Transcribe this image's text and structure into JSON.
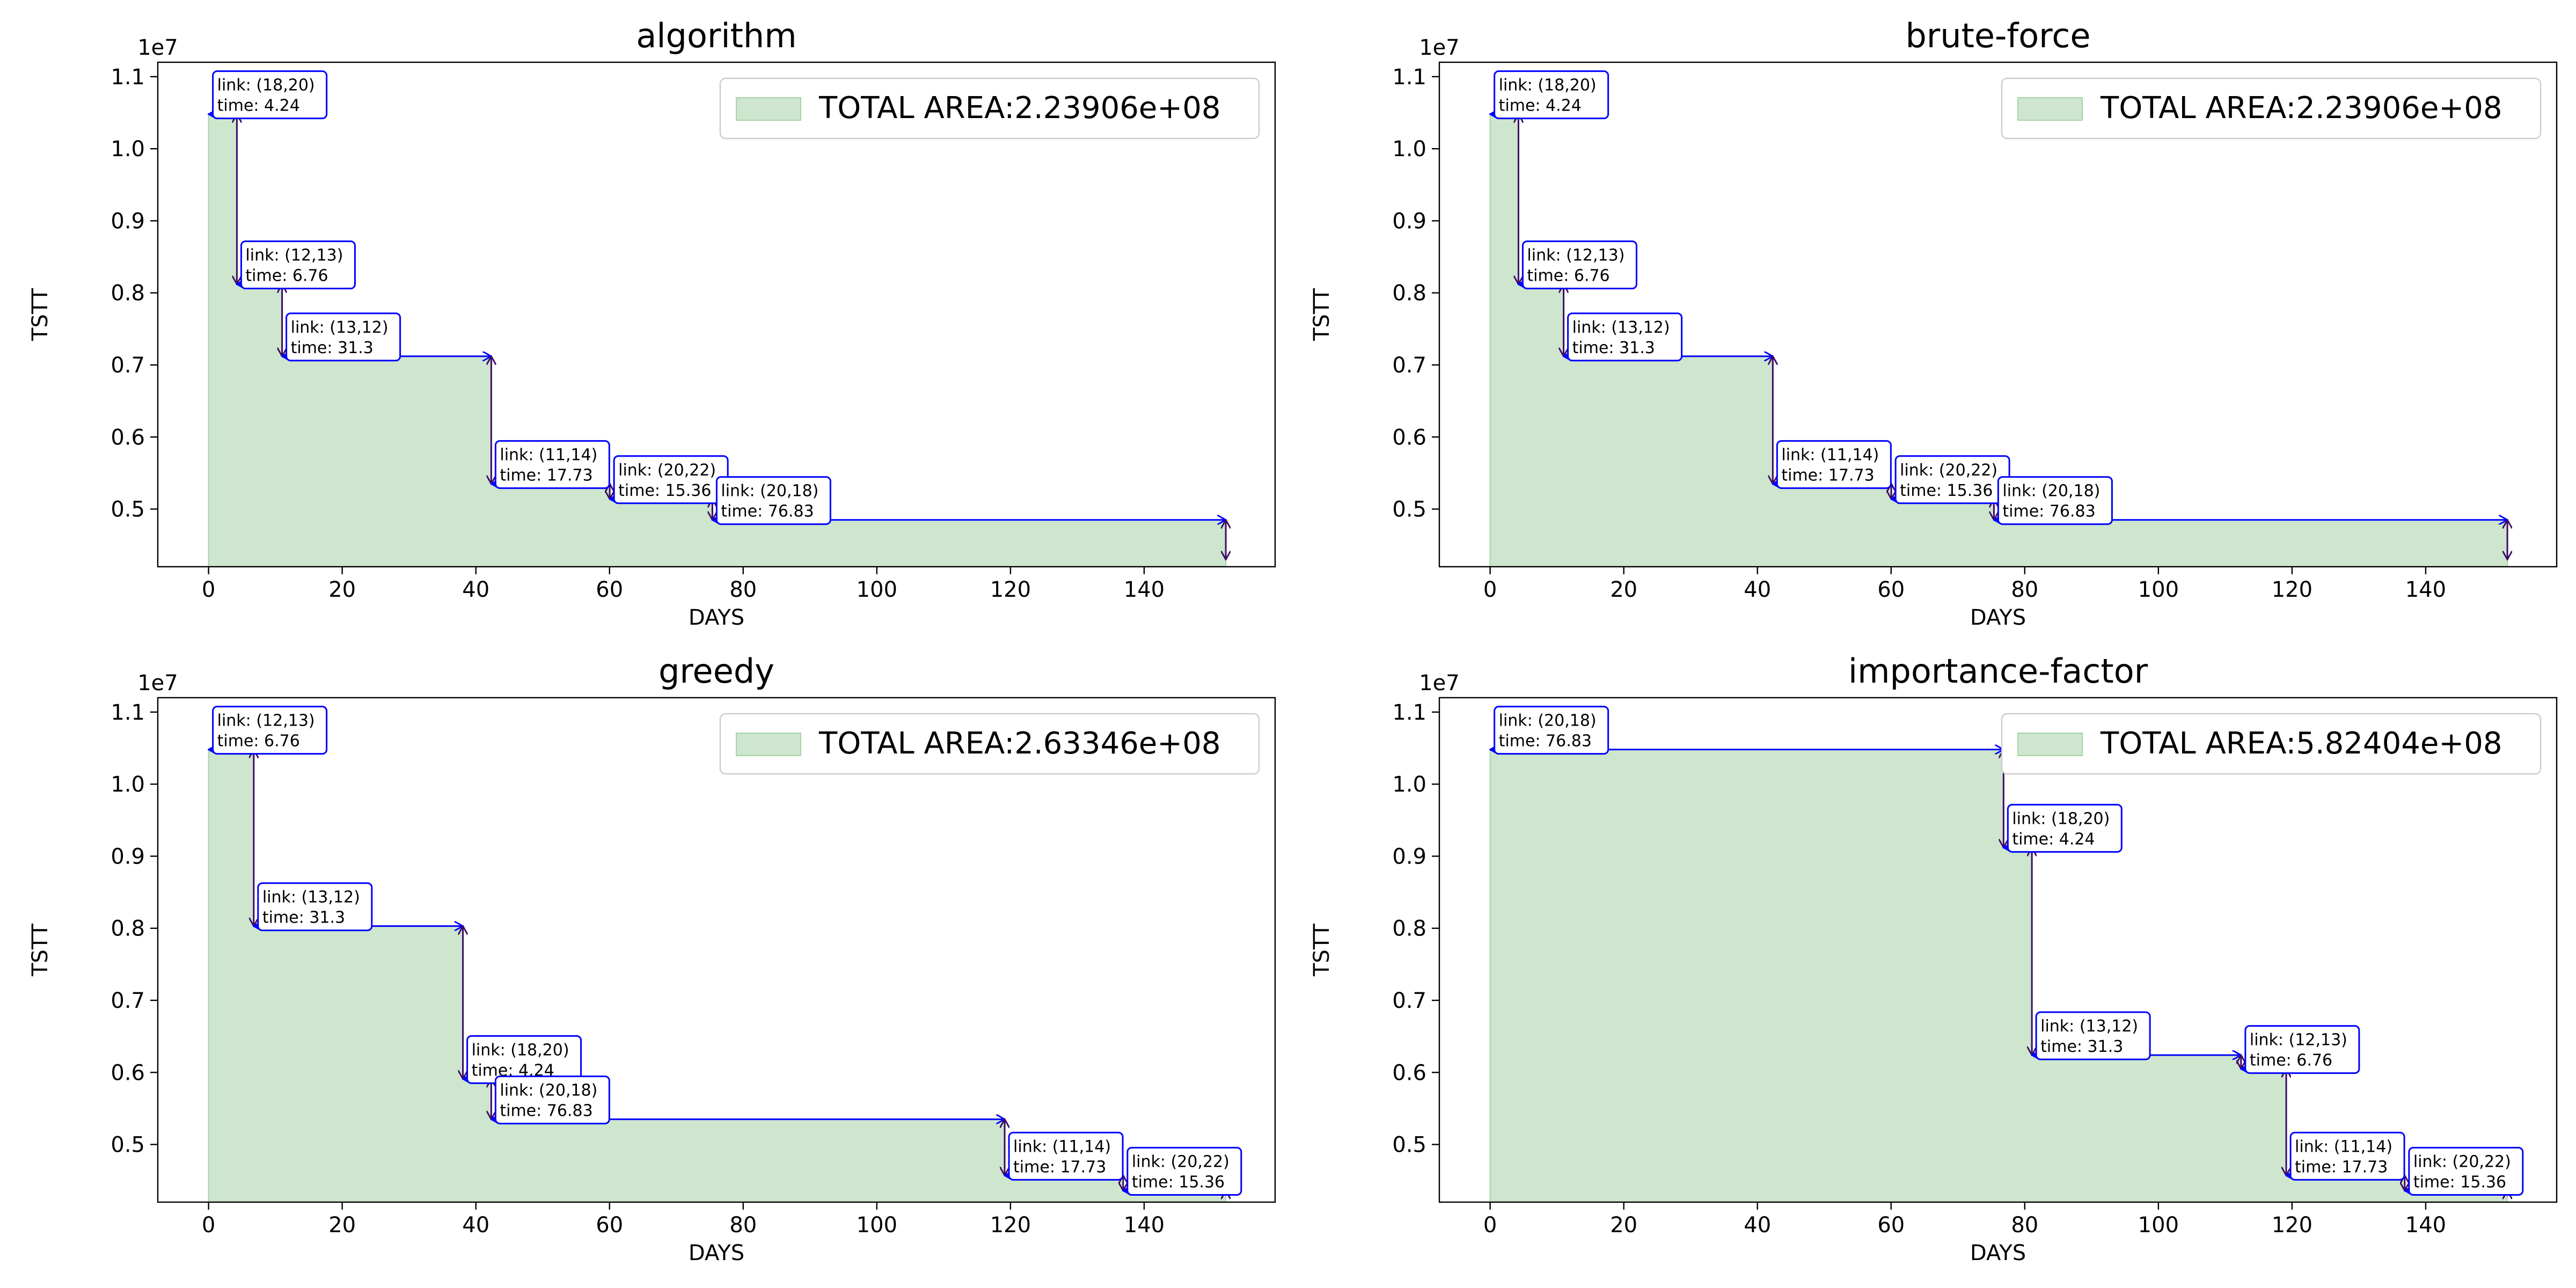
{
  "chart_data": [
    {
      "type": "area",
      "title": "algorithm",
      "xlabel": "DAYS",
      "ylabel": "TSTT",
      "y_scale_label": "1e7",
      "xlim": [
        -7.6,
        159.6
      ],
      "ylim": [
        0.42,
        1.12
      ],
      "x_ticks": [
        0,
        20,
        40,
        60,
        80,
        100,
        120,
        140
      ],
      "y_ticks": [
        0.5,
        0.6,
        0.7,
        0.8,
        0.9,
        1.0,
        1.1
      ],
      "grid": false,
      "legend_position": "top-right",
      "legend_label": "TOTAL AREA:2.23906e+08",
      "start_tstt": 1.048,
      "steps": [
        {
          "link": "link: (18,20)",
          "time": "time: 4.24",
          "start": 0,
          "duration": 4.24,
          "tstt_after": 0.812
        },
        {
          "link": "link: (12,13)",
          "time": "time: 6.76",
          "start": 4.24,
          "duration": 6.76,
          "tstt_after": 0.712
        },
        {
          "link": "link: (13,12)",
          "time": "time: 31.3",
          "start": 11.0,
          "duration": 31.3,
          "tstt_after": 0.535
        },
        {
          "link": "link: (11,14)",
          "time": "time: 17.73",
          "start": 42.3,
          "duration": 17.73,
          "tstt_after": 0.514
        },
        {
          "link": "link: (20,22)",
          "time": "time: 15.36",
          "start": 60.03,
          "duration": 15.36,
          "tstt_after": 0.485
        },
        {
          "link": "link: (20,18)",
          "time": "time: 76.83",
          "start": 75.39,
          "duration": 76.83,
          "tstt_after": 0.43
        }
      ]
    },
    {
      "type": "area",
      "title": "brute-force",
      "xlabel": "DAYS",
      "ylabel": "TSTT",
      "y_scale_label": "1e7",
      "xlim": [
        -7.6,
        159.6
      ],
      "ylim": [
        0.42,
        1.12
      ],
      "x_ticks": [
        0,
        20,
        40,
        60,
        80,
        100,
        120,
        140
      ],
      "y_ticks": [
        0.5,
        0.6,
        0.7,
        0.8,
        0.9,
        1.0,
        1.1
      ],
      "grid": false,
      "legend_position": "top-right",
      "legend_label": "TOTAL AREA:2.23906e+08",
      "start_tstt": 1.048,
      "steps": [
        {
          "link": "link: (18,20)",
          "time": "time: 4.24",
          "start": 0,
          "duration": 4.24,
          "tstt_after": 0.812
        },
        {
          "link": "link: (12,13)",
          "time": "time: 6.76",
          "start": 4.24,
          "duration": 6.76,
          "tstt_after": 0.712
        },
        {
          "link": "link: (13,12)",
          "time": "time: 31.3",
          "start": 11.0,
          "duration": 31.3,
          "tstt_after": 0.535
        },
        {
          "link": "link: (11,14)",
          "time": "time: 17.73",
          "start": 42.3,
          "duration": 17.73,
          "tstt_after": 0.514
        },
        {
          "link": "link: (20,22)",
          "time": "time: 15.36",
          "start": 60.03,
          "duration": 15.36,
          "tstt_after": 0.485
        },
        {
          "link": "link: (20,18)",
          "time": "time: 76.83",
          "start": 75.39,
          "duration": 76.83,
          "tstt_after": 0.43
        }
      ]
    },
    {
      "type": "area",
      "title": "greedy",
      "xlabel": "DAYS",
      "ylabel": "TSTT",
      "y_scale_label": "1e7",
      "xlim": [
        -7.6,
        159.6
      ],
      "ylim": [
        0.42,
        1.12
      ],
      "x_ticks": [
        0,
        20,
        40,
        60,
        80,
        100,
        120,
        140
      ],
      "y_ticks": [
        0.5,
        0.6,
        0.7,
        0.8,
        0.9,
        1.0,
        1.1
      ],
      "grid": false,
      "legend_position": "top-right",
      "legend_label": "TOTAL AREA:2.63346e+08",
      "start_tstt": 1.048,
      "steps": [
        {
          "link": "link: (12,13)",
          "time": "time: 6.76",
          "start": 0,
          "duration": 6.76,
          "tstt_after": 0.803
        },
        {
          "link": "link: (13,12)",
          "time": "time: 31.3",
          "start": 6.76,
          "duration": 31.3,
          "tstt_after": 0.591
        },
        {
          "link": "link: (18,20)",
          "time": "time: 4.24",
          "start": 38.06,
          "duration": 4.24,
          "tstt_after": 0.535
        },
        {
          "link": "link: (20,18)",
          "time": "time: 76.83",
          "start": 42.3,
          "duration": 76.83,
          "tstt_after": 0.457
        },
        {
          "link": "link: (11,14)",
          "time": "time: 17.73",
          "start": 119.13,
          "duration": 17.73,
          "tstt_after": 0.436
        },
        {
          "link": "link: (20,22)",
          "time": "time: 15.36",
          "start": 136.86,
          "duration": 15.36,
          "tstt_after": 0.43
        }
      ]
    },
    {
      "type": "area",
      "title": "importance-factor",
      "xlabel": "DAYS",
      "ylabel": "TSTT",
      "y_scale_label": "1e7",
      "xlim": [
        -7.6,
        159.6
      ],
      "ylim": [
        0.42,
        1.12
      ],
      "x_ticks": [
        0,
        20,
        40,
        60,
        80,
        100,
        120,
        140
      ],
      "y_ticks": [
        0.5,
        0.6,
        0.7,
        0.8,
        0.9,
        1.0,
        1.1
      ],
      "grid": false,
      "legend_position": "top-right",
      "legend_label": "TOTAL AREA:5.82404e+08",
      "start_tstt": 1.048,
      "steps": [
        {
          "link": "link: (20,18)",
          "time": "time: 76.83",
          "start": 0,
          "duration": 76.83,
          "tstt_after": 0.912
        },
        {
          "link": "link: (18,20)",
          "time": "time: 4.24",
          "start": 76.83,
          "duration": 4.24,
          "tstt_after": 0.624
        },
        {
          "link": "link: (13,12)",
          "time": "time: 31.3",
          "start": 81.07,
          "duration": 31.3,
          "tstt_after": 0.605
        },
        {
          "link": "link: (12,13)",
          "time": "time: 6.76",
          "start": 112.37,
          "duration": 6.76,
          "tstt_after": 0.457
        },
        {
          "link": "link: (11,14)",
          "time": "time: 17.73",
          "start": 119.13,
          "duration": 17.73,
          "tstt_after": 0.436
        },
        {
          "link": "link: (20,22)",
          "time": "time: 15.36",
          "start": 136.86,
          "duration": 15.36,
          "tstt_after": 0.43
        }
      ]
    }
  ],
  "colors": {
    "fill": "#cde6cd",
    "fill_edge": "#a8d4a8",
    "hline": "#0000ff",
    "vline": "#3d0a66",
    "annotation_border": "#0000ff",
    "axis": "#000000",
    "legend_border": "#cccccc"
  }
}
